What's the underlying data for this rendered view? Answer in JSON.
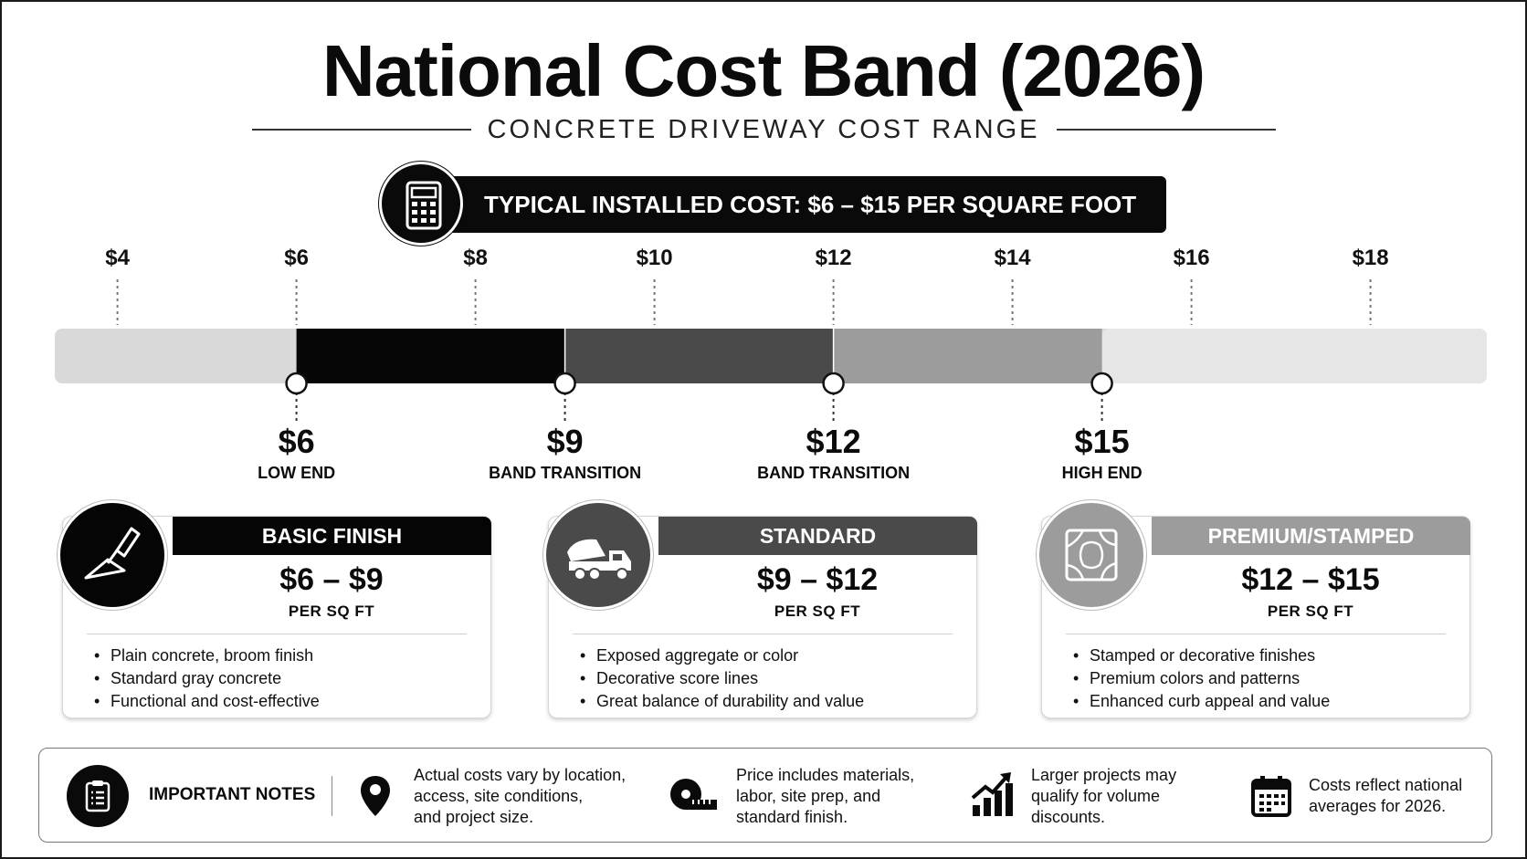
{
  "title": "National Cost Band (2026)",
  "subtitle": "CONCRETE DRIVEWAY COST RANGE",
  "summary": "TYPICAL INSTALLED COST: $6 – $15 PER SQUARE FOOT",
  "icons": {
    "summary": "calculator-icon",
    "basic": "trowel-icon",
    "standard": "cement-mixer-truck-icon",
    "premium": "stamped-pattern-icon",
    "notes": "clipboard-icon",
    "note1": "map-pin-icon",
    "note2": "tape-measure-icon",
    "note3": "bar-chart-up-icon",
    "note4": "calendar-icon"
  },
  "colors": {
    "low_band": "#050505",
    "standard_band": "#4a4a4a",
    "premium_band": "#9c9c9c",
    "track": "#d9d9d9",
    "track_end": "#e6e6e6"
  },
  "chart_data": {
    "type": "bar",
    "orientation": "horizontal",
    "x_ticks": [
      "$4",
      "$6",
      "$8",
      "$10",
      "$12",
      "$14",
      "$16",
      "$18"
    ],
    "x_tick_values": [
      4,
      6,
      8,
      10,
      12,
      14,
      16,
      18
    ],
    "xlim": [
      3.3,
      19.3
    ],
    "bands": [
      {
        "name": "BASIC FINISH",
        "start": 6,
        "end": 9,
        "color": "#050505"
      },
      {
        "name": "STANDARD",
        "start": 9,
        "end": 12,
        "color": "#4a4a4a"
      },
      {
        "name": "PREMIUM/STAMPED",
        "start": 12,
        "end": 15,
        "color": "#9c9c9c"
      }
    ],
    "markers": [
      {
        "value": 6,
        "price": "$6",
        "label": "LOW END"
      },
      {
        "value": 9,
        "price": "$9",
        "label": "BAND TRANSITION"
      },
      {
        "value": 12,
        "price": "$12",
        "label": "BAND TRANSITION"
      },
      {
        "value": 15,
        "price": "$15",
        "label": "HIGH END"
      }
    ]
  },
  "cards": [
    {
      "title": "BASIC FINISH",
      "price": "$6 – $9",
      "unit": "PER SQ FT",
      "bullets": [
        "Plain concrete, broom finish",
        "Standard gray concrete",
        "Functional and cost-effective"
      ]
    },
    {
      "title": "STANDARD",
      "price": "$9 – $12",
      "unit": "PER SQ FT",
      "bullets": [
        "Exposed aggregate or color",
        "Decorative score lines",
        "Great balance of durability and value"
      ]
    },
    {
      "title": "PREMIUM/STAMPED",
      "price": "$12 – $15",
      "unit": "PER SQ FT",
      "bullets": [
        "Stamped or decorative finishes",
        "Premium colors and patterns",
        "Enhanced curb appeal and value"
      ]
    }
  ],
  "notes": {
    "title": "IMPORTANT NOTES",
    "items": [
      {
        "lines": [
          "Actual costs vary by location,",
          "access, site conditions,",
          "and project size."
        ]
      },
      {
        "lines": [
          "Price includes materials,",
          "labor, site prep, and",
          "standard finish."
        ]
      },
      {
        "lines": [
          "Larger projects may",
          "qualify for volume",
          "discounts."
        ]
      },
      {
        "lines": [
          "Costs reflect national",
          "averages for 2026."
        ]
      }
    ]
  }
}
